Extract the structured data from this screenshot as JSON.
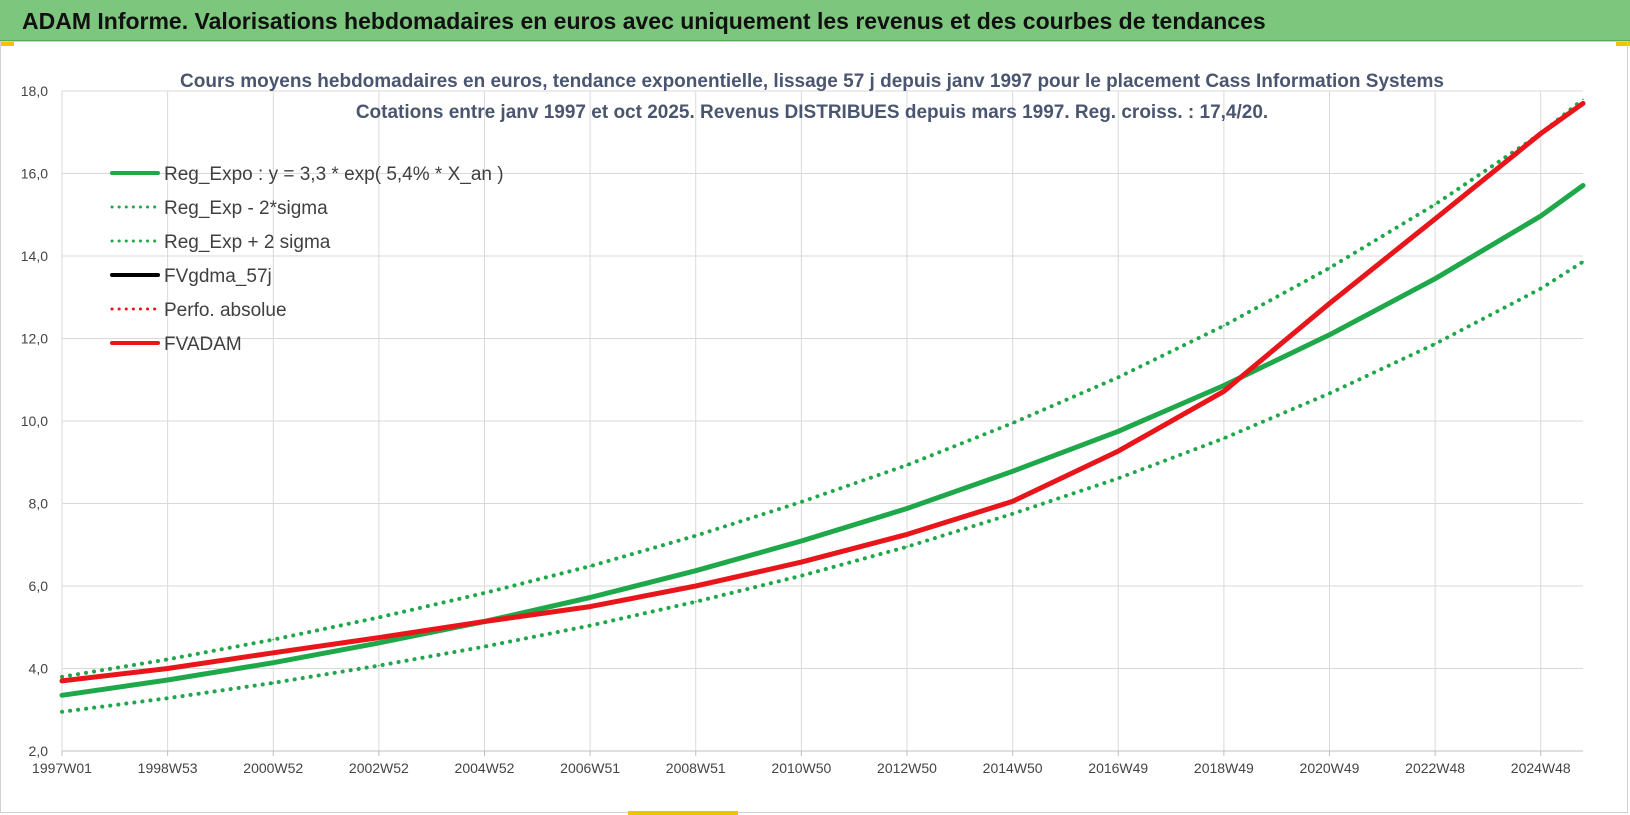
{
  "header": {
    "title": "ADAM Informe. Valorisations hebdomadaires en euros avec uniquement les revenus et des courbes de tendances"
  },
  "colors": {
    "header_bg": "#7dc67d",
    "green": "#1fa84a",
    "red": "#e8161b",
    "black": "#000000",
    "grid": "#d9d9d9"
  },
  "chart_data": {
    "type": "line",
    "title": [
      "Cours moyens hebdomadaires en euros, tendance exponentielle, lissage 57 j depuis janv 1997  pour le placement Cass Information Systems",
      "Cotations entre janv 1997 et oct 2025. Revenus DISTRIBUES depuis mars 1997.  Reg. croiss. : 17,4/20."
    ],
    "ylim": [
      2.0,
      18.0
    ],
    "y_ticks": [
      "2,0",
      "4,0",
      "6,0",
      "8,0",
      "10,0",
      "12,0",
      "14,0",
      "16,0",
      "18,0"
    ],
    "y_tick_values": [
      2,
      4,
      6,
      8,
      10,
      12,
      14,
      16,
      18
    ],
    "x_ticks": [
      "1997W01",
      "1998W53",
      "2000W52",
      "2002W52",
      "2004W52",
      "2006W51",
      "2008W51",
      "2010W50",
      "2012W50",
      "2014W50",
      "2016W49",
      "2018W49",
      "2020W49",
      "2022W48",
      "2024W48"
    ],
    "x_tick_years": [
      1997.0,
      1999.0,
      2001.0,
      2003.0,
      2005.0,
      2007.0,
      2009.0,
      2011.0,
      2013.0,
      2015.0,
      2017.0,
      2019.0,
      2021.0,
      2023.0,
      2025.0
    ],
    "xlim": [
      1997.0,
      2025.8
    ],
    "grid": true,
    "legend_position": "top-left",
    "legend": [
      {
        "label": "Reg_Expo : y = 3,3 * exp( 5,4% *  X_an )",
        "color": "#1fa84a",
        "style": "solid"
      },
      {
        "label": "Reg_Exp - 2*sigma",
        "color": "#1fa84a",
        "style": "dotted"
      },
      {
        "label": "Reg_Exp + 2 sigma",
        "color": "#1fa84a",
        "style": "dotted"
      },
      {
        "label": "FVgdma_57j",
        "color": "#000000",
        "style": "solid"
      },
      {
        "label": "Perfo. absolue",
        "color": "#e8161b",
        "style": "dotted"
      },
      {
        "label": "FVADAM",
        "color": "#e8161b",
        "style": "solid"
      }
    ],
    "series": [
      {
        "name": "Reg_Expo : y = 3,3 * exp( 5,4% *  X_an )",
        "x": [
          1997.0,
          1999.0,
          2001.0,
          2003.0,
          2005.0,
          2007.0,
          2009.0,
          2011.0,
          2013.0,
          2015.0,
          2017.0,
          2019.0,
          2021.0,
          2023.0,
          2025.0,
          2025.8
        ],
        "y": [
          3.35,
          3.72,
          4.14,
          4.62,
          5.14,
          5.72,
          6.37,
          7.09,
          7.88,
          8.78,
          9.75,
          10.86,
          12.09,
          13.45,
          14.97,
          15.71
        ]
      },
      {
        "name": "Reg_Exp - 2*sigma",
        "x": [
          1997.0,
          1999.0,
          2001.0,
          2003.0,
          2005.0,
          2007.0,
          2009.0,
          2011.0,
          2013.0,
          2015.0,
          2017.0,
          2019.0,
          2021.0,
          2023.0,
          2025.0,
          2025.8
        ],
        "y": [
          2.95,
          3.28,
          3.65,
          4.07,
          4.53,
          5.04,
          5.62,
          6.25,
          6.95,
          7.75,
          8.61,
          9.58,
          10.67,
          11.87,
          13.21,
          13.86
        ]
      },
      {
        "name": "Reg_Exp + 2 sigma",
        "x": [
          1997.0,
          1999.0,
          2001.0,
          2003.0,
          2005.0,
          2007.0,
          2009.0,
          2011.0,
          2013.0,
          2015.0,
          2017.0,
          2019.0,
          2021.0,
          2023.0,
          2025.0,
          2025.8
        ],
        "y": [
          3.8,
          4.22,
          4.7,
          5.24,
          5.83,
          6.48,
          7.22,
          8.04,
          8.93,
          9.95,
          11.06,
          12.31,
          13.71,
          15.25,
          16.97,
          17.8
        ]
      },
      {
        "name": "FVADAM",
        "x": [
          1997.0,
          1999.0,
          2001.0,
          2003.0,
          2005.0,
          2007.0,
          2009.0,
          2011.0,
          2013.0,
          2015.0,
          2017.0,
          2019.0,
          2021.0,
          2023.0,
          2025.0,
          2025.8
        ],
        "y": [
          3.7,
          4.0,
          4.38,
          4.75,
          5.14,
          5.5,
          6.0,
          6.58,
          7.25,
          8.05,
          9.27,
          10.72,
          12.85,
          14.9,
          16.97,
          17.7
        ]
      }
    ]
  }
}
